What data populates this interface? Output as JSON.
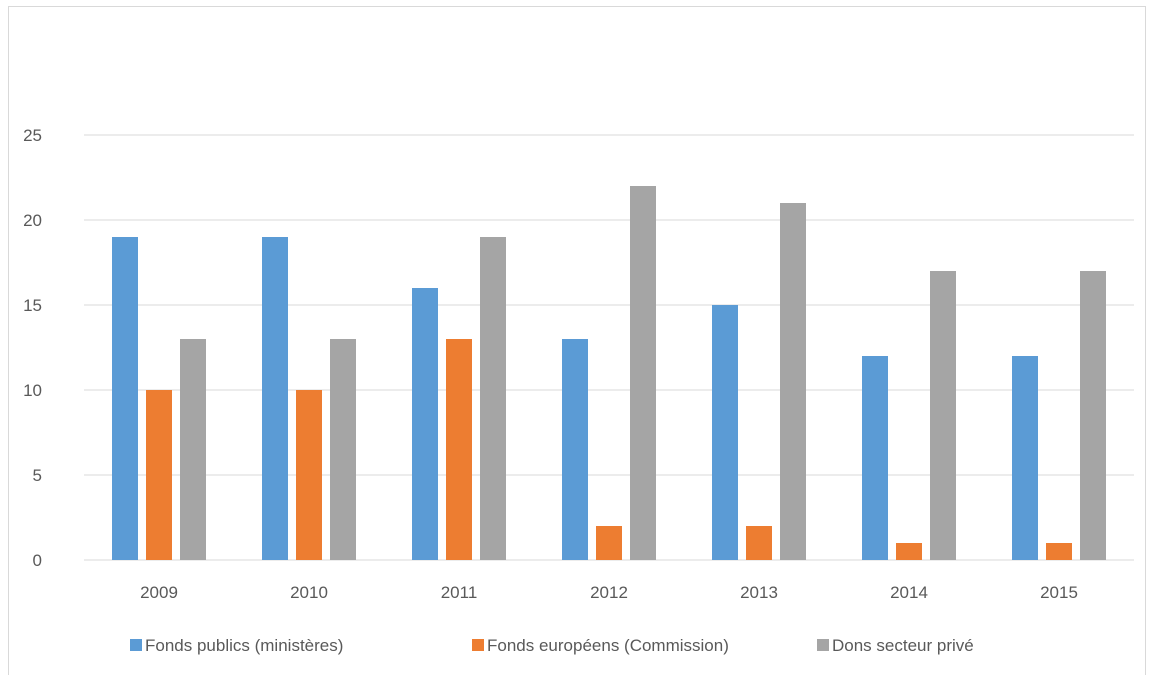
{
  "chart_data": {
    "type": "bar",
    "categories": [
      "2009",
      "2010",
      "2011",
      "2012",
      "2013",
      "2014",
      "2015"
    ],
    "series": [
      {
        "name": "Fonds publics  (ministères)",
        "color": "#5b9bd5",
        "values": [
          19,
          19,
          16,
          13,
          15,
          12,
          12
        ]
      },
      {
        "name": "Fonds européens (Commission)",
        "color": "#ed7d31",
        "values": [
          10,
          10,
          13,
          2,
          2,
          1,
          1
        ]
      },
      {
        "name": "Dons secteur privé",
        "color": "#a5a5a5",
        "values": [
          13,
          13,
          19,
          22,
          21,
          17,
          17
        ]
      }
    ],
    "yticks": [
      "0",
      "5",
      "10",
      "15",
      "20",
      "25"
    ],
    "ylim": [
      0,
      25
    ],
    "grid": true,
    "legend_position": "bottom"
  }
}
